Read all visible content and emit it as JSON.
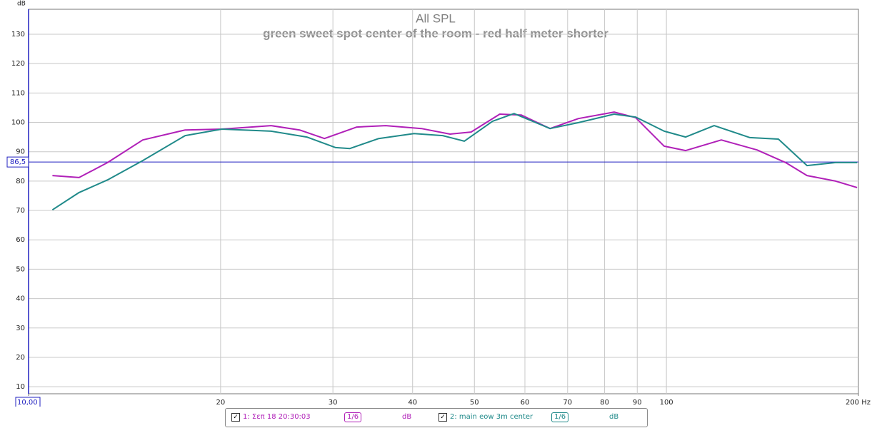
{
  "chart_data": {
    "type": "line",
    "title": "All SPL",
    "subtitle": "green sweet spot center of the room - red half meter shorter",
    "y_label": "dB",
    "log_x": true,
    "grid": true,
    "xlim": [
      10,
      200
    ],
    "ylim": [
      7.6,
      138.5
    ],
    "xticks": [
      {
        "value": 10,
        "label": "10,00"
      },
      20,
      30,
      40,
      50,
      60,
      70,
      80,
      90,
      100,
      {
        "value": 200,
        "label": "200 Hz"
      }
    ],
    "yticks": [
      10,
      20,
      30,
      40,
      50,
      60,
      70,
      80,
      90,
      100,
      110,
      120,
      130
    ],
    "cursor": {
      "value": 86.5,
      "label": "86,5",
      "color": "#2020c0"
    },
    "series": [
      {
        "name": "1: Σεπ 18 20:30:03",
        "color": "#b020b8",
        "smoothing": "1/6",
        "unit": "dB",
        "x": [
          10.9,
          12.0,
          13.3,
          15.1,
          17.6,
          20.1,
          24.0,
          26.6,
          29.1,
          32.7,
          36.3,
          41.3,
          45.8,
          49.4,
          54.8,
          59.2,
          65.7,
          72.8,
          82.8,
          89.5,
          99.2,
          107.2,
          121.9,
          138.7,
          153.8,
          166.1,
          184.2,
          199
        ],
        "values": [
          81.9,
          81.2,
          86.3,
          94.0,
          97.4,
          97.7,
          98.9,
          97.4,
          94.5,
          98.4,
          98.9,
          97.9,
          96.0,
          96.7,
          102.8,
          102.5,
          97.9,
          101.3,
          103.5,
          101.6,
          91.9,
          90.4,
          94.0,
          90.6,
          86.3,
          81.9,
          80.0,
          77.8
        ]
      },
      {
        "name": "2: main eow 3m center",
        "color": "#208a8a",
        "smoothing": "1/6",
        "unit": "dB",
        "x": [
          10.9,
          12.0,
          13.3,
          15.1,
          17.6,
          20.1,
          24.0,
          27.3,
          30.3,
          31.9,
          35.4,
          40.2,
          44.6,
          48.2,
          53.4,
          57.7,
          65.7,
          72.8,
          82.8,
          89.5,
          99.2,
          107.2,
          118.8,
          135.2,
          149.8,
          166.1,
          184.2,
          199
        ],
        "values": [
          70.2,
          76.1,
          80.4,
          87.0,
          95.5,
          97.7,
          97.0,
          95.0,
          91.4,
          91.1,
          94.5,
          96.2,
          95.5,
          93.6,
          100.4,
          103.0,
          97.9,
          99.9,
          102.8,
          101.8,
          97.0,
          95.0,
          98.9,
          94.8,
          94.3,
          85.3,
          86.3,
          86.3
        ]
      }
    ]
  }
}
